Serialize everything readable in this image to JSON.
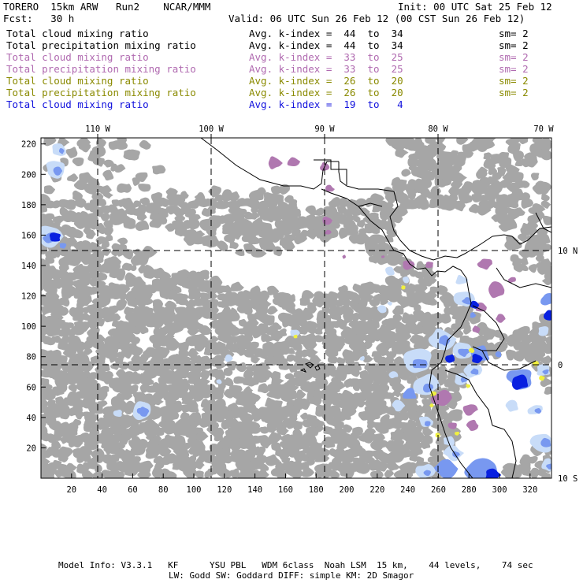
{
  "header": {
    "model": "TORERO  15km ARW   Run2    NCAR/MMM",
    "init": "Init: 00 UTC Sat 25 Feb 12",
    "fcst": "Fcst:   30 h",
    "valid": "Valid: 06 UTC Sun 26 Feb 12 (00 CST Sun 26 Feb 12)"
  },
  "legend": [
    {
      "field": "Total cloud mixing ratio",
      "kindex": "Avg. k-index =  44  to  34",
      "sm": "sm= 2",
      "color": "#000000"
    },
    {
      "field": "Total precipitation mixing ratio",
      "kindex": "Avg. k-index =  44  to  34",
      "sm": "sm= 2",
      "color": "#000000"
    },
    {
      "field": "Total cloud mixing ratio",
      "kindex": "Avg. k-index =  33  to  25",
      "sm": "sm= 2",
      "color": "#b06ab0"
    },
    {
      "field": "Total precipitation mixing ratio",
      "kindex": "Avg. k-index =  33  to  25",
      "sm": "sm= 2",
      "color": "#b06ab0"
    },
    {
      "field": "Total cloud mixing ratio",
      "kindex": "Avg. k-index =  26  to  20",
      "sm": "sm= 2",
      "color": "#8a8a00"
    },
    {
      "field": "Total precipitation mixing ratio",
      "kindex": "Avg. k-index =  26  to  20",
      "sm": "sm= 2",
      "color": "#8a8a00"
    },
    {
      "field": "Total cloud mixing ratio",
      "kindex": "Avg. k-index =  19  to   4",
      "sm": "",
      "color": "#1010dd"
    }
  ],
  "map": {
    "top_lon_labels": [
      "110 W",
      "100 W",
      "90 W",
      "80 W",
      "70 W"
    ],
    "right_lat_labels": [
      "10 N",
      "0",
      "10 S"
    ],
    "y_ticks": [
      "20",
      "40",
      "60",
      "80",
      "100",
      "120",
      "140",
      "160",
      "180",
      "200",
      "220"
    ],
    "x_ticks": [
      "20",
      "40",
      "60",
      "80",
      "100",
      "120",
      "140",
      "160",
      "180",
      "200",
      "220",
      "240",
      "260",
      "280",
      "300",
      "320"
    ],
    "colors": {
      "grey": "#a6a6a6",
      "purple": "#b078b0",
      "light_blue": "#c8dcf8",
      "mid_blue": "#7898f0",
      "dark_blue": "#0820e0",
      "yellow": "#f0f040"
    }
  },
  "footer": {
    "line1": "Model Info: V3.3.1   KF      YSU PBL   WDM 6class  Noah LSM  15 km,    44 levels,    74 sec",
    "line2": "LW: Godd SW: Goddard DIFF: simple KM: 2D Smagor"
  }
}
